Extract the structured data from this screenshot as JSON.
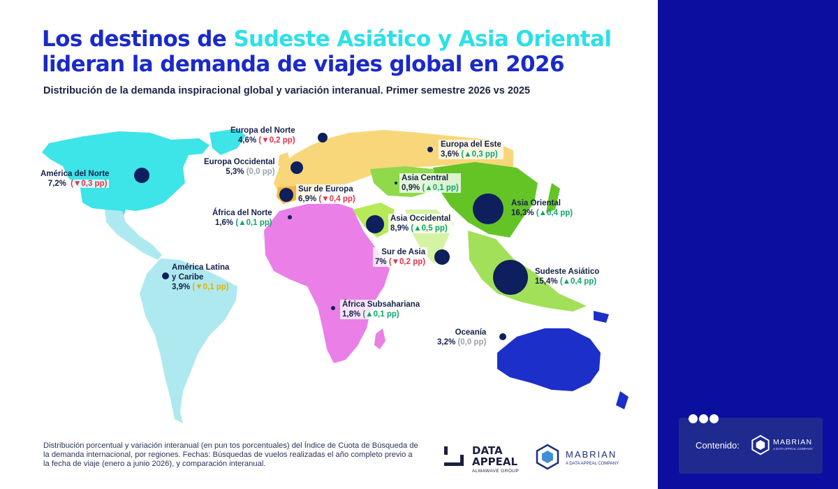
{
  "title": {
    "part1": "Los destinos de ",
    "highlight": "Sudeste Asiático y Asia Oriental",
    "part2": "lideran la demanda de viajes global en 2026"
  },
  "subtitle": "Distribución de la demanda inspiracional global y variación interanual. Primer semestre 2026 vs 2025",
  "regions": {
    "europa_norte": {
      "name": "Europa del Norte",
      "share": "4,6%",
      "change": "(▼0,2 pp)"
    },
    "europa_este": {
      "name": "Europa del Este",
      "share": "3,6%",
      "change": "(▲0,3 pp)"
    },
    "america_norte": {
      "name": "América del Norte",
      "share": "7,2%",
      "change": "(▼0,3 pp)"
    },
    "europa_occidental": {
      "name": "Europa Occidental",
      "share": "5,3%",
      "change": "(0,0 pp)"
    },
    "asia_central": {
      "name": "Asia Central",
      "share": "0,9%",
      "change": "(▲0,1 pp)"
    },
    "sur_europa": {
      "name": "Sur de Europa",
      "share": "6,9%",
      "change": "(▼0,4 pp)"
    },
    "asia_oriental": {
      "name": "Asia Oriental",
      "share": "16,3%",
      "change": "(▲0,4 pp)"
    },
    "africa_norte": {
      "name": "África del Norte",
      "share": "1,6%",
      "change": "(▲0,1 pp)"
    },
    "asia_occidental": {
      "name": "Asia Occidental",
      "share": "8,9%",
      "change": "(▲0,5 pp)"
    },
    "sur_asia": {
      "name": "Sur de Asia",
      "share": "7%",
      "change": "(▼0,2 pp)"
    },
    "america_latina": {
      "name_line1": "América Latina",
      "name_line2": "y Caribe",
      "share": "3,9%",
      "change": "(▼0,1 pp)"
    },
    "sudeste_asiatico": {
      "name": "Sudeste Asiático",
      "share": "15,4%",
      "change": "(▲0,4 pp)"
    },
    "africa_subsahariana": {
      "name": "África Subsahariana",
      "share": "1,8%",
      "change": "(▲0,1 pp)"
    },
    "oceania": {
      "name": "Oceanía",
      "share": "3,2%",
      "change": "(0,0 pp)"
    }
  },
  "colors": {
    "title_blue": "#1a2ac9",
    "title_highlight": "#2de0e6",
    "bubble": "#0d1f5c",
    "up": "#10a56b",
    "down": "#e0344a",
    "zero": "#9aa0ab",
    "north_america": "#3de4e8",
    "latin_america": "#aee9f0",
    "europe": "#f8d77a",
    "africa": "#ea7fe8",
    "asia": "#8fd94a",
    "oceania": "#1d2fc9",
    "side_panel": "#0a0fa0"
  },
  "footnote": "Distribución porcentual y variación interanual (en pun tos porcentuales) del Índice de Cuota de Búsqueda de la demanda internacional, por regiones. Fechas: Búsquedas de vuelos realizadas el año completo previo a la fecha de viaje (enero a junio 2026), y comparación interanual.",
  "logos": {
    "dataappeal_line1": "DATA",
    "dataappeal_line2": "APPEAL",
    "dataappeal_tagline": "ALMAWAVE GROUP",
    "mabrian_name": "MABRIAN",
    "mabrian_tagline": "A DATA APPEAL COMPANY"
  },
  "sidebar": {
    "content_label": "Contenido:",
    "logo_name": "MABRIAN",
    "logo_tagline": "A DATA APPEAL COMPANY"
  }
}
